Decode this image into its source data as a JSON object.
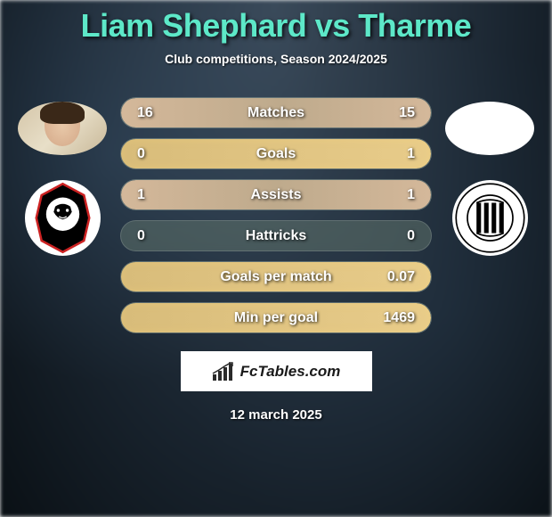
{
  "title": "Liam Shephard vs Tharme",
  "subtitle": "Club competitions, Season 2024/2025",
  "date": "12 march 2025",
  "footer_brand": "FcTables.com",
  "colors": {
    "title_color": "#5de8c8",
    "text_white": "#ffffff",
    "bar_bg": "rgba(100, 120, 110, 0.5)",
    "bar_fill": "#d4b89a",
    "bar_fill_winner": "#e8cc8a",
    "background_dark": "#1a2530"
  },
  "stats": [
    {
      "label": "Matches",
      "left_value": "16",
      "right_value": "15",
      "left_fill_pct": 52,
      "right_fill_pct": 48,
      "winner": "none"
    },
    {
      "label": "Goals",
      "left_value": "0",
      "right_value": "1",
      "left_fill_pct": 0,
      "right_fill_pct": 100,
      "winner": "right"
    },
    {
      "label": "Assists",
      "left_value": "1",
      "right_value": "1",
      "left_fill_pct": 50,
      "right_fill_pct": 50,
      "winner": "none"
    },
    {
      "label": "Hattricks",
      "left_value": "0",
      "right_value": "0",
      "left_fill_pct": 0,
      "right_fill_pct": 0,
      "winner": "none"
    },
    {
      "label": "Goals per match",
      "left_value": "",
      "right_value": "0.07",
      "left_fill_pct": 0,
      "right_fill_pct": 100,
      "winner": "right"
    },
    {
      "label": "Min per goal",
      "left_value": "",
      "right_value": "1469",
      "left_fill_pct": 0,
      "right_fill_pct": 100,
      "winner": "right"
    }
  ],
  "player_left": {
    "name": "Liam Shephard",
    "badge": "salford-city"
  },
  "player_right": {
    "name": "Tharme",
    "badge": "grimsby-town"
  }
}
